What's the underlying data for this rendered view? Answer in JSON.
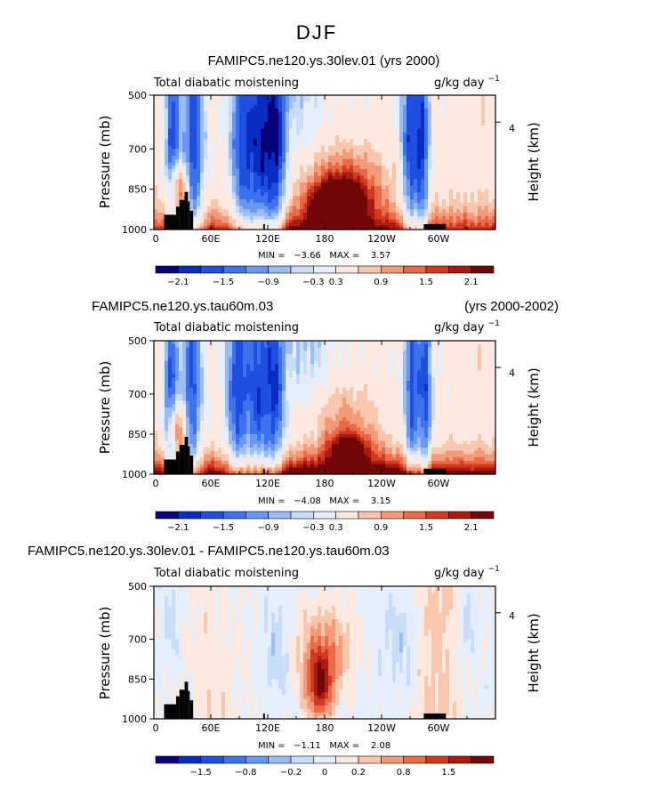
{
  "figure": {
    "title": "DJF"
  },
  "palette": [
    "#08007a",
    "#0a2cc2",
    "#1e4fe0",
    "#3d72ee",
    "#6a97f2",
    "#9cbcf6",
    "#c9dcfa",
    "#e4eefc",
    "#fde9df",
    "#f9c6ae",
    "#f39a78",
    "#e86a46",
    "#d2391f",
    "#ab1a10",
    "#700606"
  ],
  "chart_data": [
    {
      "type": "heatmap",
      "case": "FAMIPC5.ne120.ys.30lev.01 (yrs 2000)",
      "title_left": "",
      "title_right": "",
      "subtitle": "Total diabatic moistening",
      "units": "g/kg day",
      "units_exp": "−1",
      "xlabel": "",
      "ylabel": "Pressure (mb)",
      "y2label": "Height (km)",
      "y2_tick": "4",
      "x_ticks": [
        "0",
        "60E",
        "120E",
        "180",
        "120W",
        "60W"
      ],
      "y_ticks": [
        "500",
        "700",
        "850",
        "1000"
      ],
      "stats": "MIN =   −3.66   MAX =    3.57",
      "colorbar_labels": [
        "−2.1",
        "−1.5",
        "−0.9",
        "−0.3",
        "0.3",
        "0.9",
        "1.5",
        "2.1"
      ],
      "colorbar_levels": [
        "−2.1",
        "−1.8",
        "−1.5",
        "−1.2",
        "−0.9",
        "−0.6",
        "−0.3",
        "0",
        "0.3",
        "0.6",
        "0.9",
        "1.2",
        "1.5",
        "1.8",
        "2.1"
      ],
      "field_min": -3.66,
      "field_max": 3.57,
      "x_range": [
        0,
        360
      ],
      "y_range": [
        1000,
        500
      ]
    },
    {
      "type": "heatmap",
      "case": "",
      "title_left": "FAMIPC5.ne120.ys.tau60m.03",
      "title_right": "(yrs 2000-2002)",
      "subtitle": "Total diabatic moistening",
      "units": "g/kg day",
      "units_exp": "−1",
      "xlabel": "",
      "ylabel": "Pressure (mb)",
      "y2label": "Height (km)",
      "y2_tick": "4",
      "x_ticks": [
        "0",
        "60E",
        "120E",
        "180",
        "120W",
        "60W"
      ],
      "y_ticks": [
        "500",
        "700",
        "850",
        "1000"
      ],
      "stats": "MIN =   −4.08   MAX =    3.15",
      "colorbar_labels": [
        "−2.1",
        "−1.5",
        "−0.9",
        "−0.3",
        "0.3",
        "0.9",
        "1.5",
        "2.1"
      ],
      "colorbar_levels": [
        "−2.1",
        "−1.8",
        "−1.5",
        "−1.2",
        "−0.9",
        "−0.6",
        "−0.3",
        "0",
        "0.3",
        "0.6",
        "0.9",
        "1.2",
        "1.5",
        "1.8",
        "2.1"
      ],
      "field_min": -4.08,
      "field_max": 3.15,
      "x_range": [
        0,
        360
      ],
      "y_range": [
        1000,
        500
      ]
    },
    {
      "type": "heatmap",
      "case": "",
      "title_left": "FAMIPC5.ne120.ys.30lev.01 - FAMIPC5.ne120.ys.tau60m.03",
      "title_right": "",
      "subtitle": "Total diabatic moistening",
      "units": "g/kg day",
      "units_exp": "−1",
      "xlabel": "",
      "ylabel": "Pressure (mb)",
      "y2label": "Height (km)",
      "y2_tick": "4",
      "x_ticks": [
        "0",
        "60E",
        "120E",
        "180",
        "120W",
        "60W"
      ],
      "y_ticks": [
        "500",
        "700",
        "850",
        "1000"
      ],
      "stats": "MIN =   −1.11   MAX =    2.08",
      "colorbar_labels": [
        "−1.5",
        "−0.8",
        "−0.2",
        "0",
        "0.2",
        "0.8",
        "1.5"
      ],
      "colorbar_levels": [
        "−1.8",
        "−1.5",
        "−1.2",
        "−0.8",
        "−0.5",
        "−0.2",
        "−0.1",
        "0",
        "0.1",
        "0.2",
        "0.5",
        "0.8",
        "1.2",
        "1.5",
        "1.8"
      ],
      "field_min": -1.11,
      "field_max": 2.08,
      "x_range": [
        0,
        360
      ],
      "y_range": [
        1000,
        500
      ]
    }
  ]
}
